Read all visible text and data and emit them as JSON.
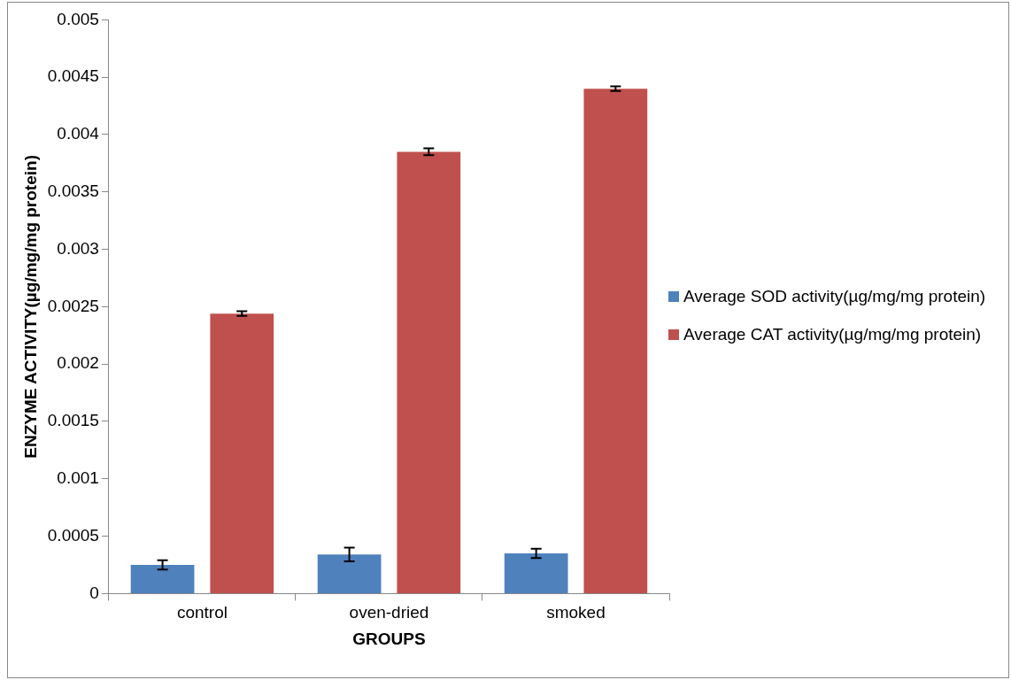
{
  "chart_data": {
    "type": "bar",
    "xlabel": "GROUPS",
    "ylabel": "ENZYME ACTIVITY(µg/mg/mg protein)",
    "categories": [
      "control",
      "oven-dried",
      "smoked"
    ],
    "series": [
      {
        "name": "Average SOD activity(µg/mg/mg protein)",
        "color": "#4f81bd",
        "values": [
          0.00025,
          0.00034,
          0.00035
        ],
        "errors": [
          4e-05,
          6e-05,
          4e-05
        ]
      },
      {
        "name": "Average CAT activity(µg/mg/mg protein)",
        "color": "#c0504d",
        "values": [
          0.00244,
          0.00385,
          0.0044
        ],
        "errors": [
          2e-05,
          3e-05,
          2e-05
        ]
      }
    ],
    "ylim": [
      0,
      0.005
    ],
    "yticks": [
      0,
      0.0005,
      0.001,
      0.0015,
      0.002,
      0.0025,
      0.003,
      0.0035,
      0.004,
      0.0045,
      0.005
    ],
    "grid": false,
    "legend": "right"
  }
}
